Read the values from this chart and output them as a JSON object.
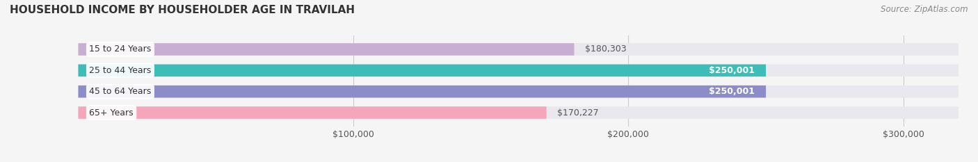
{
  "title": "HOUSEHOLD INCOME BY HOUSEHOLDER AGE IN TRAVILAH",
  "source": "Source: ZipAtlas.com",
  "categories": [
    "15 to 24 Years",
    "25 to 44 Years",
    "45 to 64 Years",
    "65+ Years"
  ],
  "values": [
    180303,
    250001,
    250001,
    170227
  ],
  "bar_colors": [
    "#c9aed4",
    "#3dbcb8",
    "#8b8cc8",
    "#f4a7bb"
  ],
  "bar_bg_color": "#e8e8ee",
  "value_labels": [
    "$180,303",
    "$250,001",
    "$250,001",
    "$170,227"
  ],
  "value_label_colors": [
    "#555555",
    "#ffffff",
    "#ffffff",
    "#555555"
  ],
  "x_ticks": [
    100000,
    200000,
    300000
  ],
  "x_tick_labels": [
    "$100,000",
    "$200,000",
    "$300,000"
  ],
  "xlim": [
    0,
    320000
  ],
  "bar_height": 0.58,
  "title_fontsize": 11,
  "tick_fontsize": 9,
  "label_fontsize": 9,
  "source_fontsize": 8.5,
  "bg_color": "#f5f5f5"
}
